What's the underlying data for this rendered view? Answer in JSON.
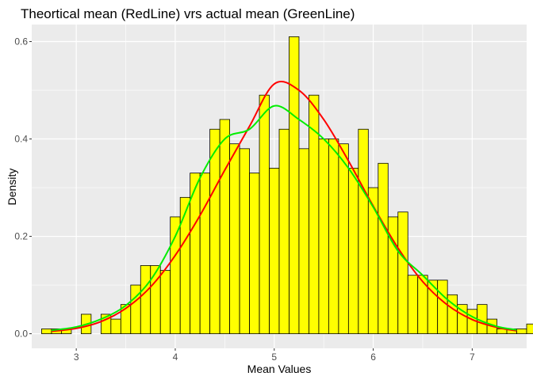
{
  "chart_data": {
    "type": "bar",
    "title": "Theortical mean (RedLine) vrs actual mean (GreenLine)",
    "xlabel": "Mean Values",
    "ylabel": "Density",
    "xlim": [
      2.55,
      7.55
    ],
    "ylim": [
      -0.03,
      0.635
    ],
    "x_ticks": [
      3,
      4,
      5,
      6,
      7
    ],
    "x_tick_labels": [
      "3",
      "4",
      "5",
      "6",
      "7"
    ],
    "y_ticks": [
      0.0,
      0.2,
      0.4,
      0.6
    ],
    "y_tick_labels": [
      "0.0",
      "0.2",
      "0.4",
      "0.6"
    ],
    "grid": true,
    "background": "#ebebeb",
    "histogram": {
      "bin_width": 0.1,
      "start": 2.65,
      "fill": "#ffff00",
      "stroke": "#000000",
      "densities": [
        0.01,
        0.01,
        0.01,
        0.0,
        0.04,
        0.0,
        0.04,
        0.03,
        0.06,
        0.1,
        0.14,
        0.14,
        0.13,
        0.24,
        0.28,
        0.33,
        0.33,
        0.42,
        0.44,
        0.39,
        0.38,
        0.33,
        0.49,
        0.34,
        0.42,
        0.61,
        0.38,
        0.49,
        0.4,
        0.4,
        0.39,
        0.34,
        0.42,
        0.3,
        0.35,
        0.24,
        0.25,
        0.12,
        0.12,
        0.11,
        0.11,
        0.08,
        0.06,
        0.05,
        0.06,
        0.03,
        0.01,
        0.01,
        0.01,
        0.02
      ]
    },
    "series": [
      {
        "color": "#ff0000",
        "x": [
          2.75,
          3.0,
          3.25,
          3.5,
          3.75,
          4.0,
          4.25,
          4.5,
          4.75,
          5.0,
          5.25,
          5.5,
          5.75,
          6.0,
          6.25,
          6.5,
          6.75,
          7.0,
          7.25,
          7.45
        ],
        "y": [
          0.005,
          0.011,
          0.025,
          0.052,
          0.096,
          0.161,
          0.243,
          0.336,
          0.426,
          0.513,
          0.5,
          0.44,
          0.355,
          0.262,
          0.176,
          0.107,
          0.059,
          0.029,
          0.013,
          0.006
        ]
      },
      {
        "color": "#00ee00",
        "x": [
          2.75,
          3.0,
          3.25,
          3.5,
          3.75,
          4.0,
          4.25,
          4.5,
          4.75,
          5.0,
          5.25,
          5.5,
          5.75,
          6.0,
          6.25,
          6.5,
          6.75,
          7.0,
          7.25,
          7.45
        ],
        "y": [
          0.007,
          0.014,
          0.03,
          0.058,
          0.11,
          0.2,
          0.32,
          0.4,
          0.42,
          0.468,
          0.44,
          0.4,
          0.34,
          0.26,
          0.17,
          0.12,
          0.07,
          0.035,
          0.015,
          0.008
        ]
      }
    ]
  }
}
